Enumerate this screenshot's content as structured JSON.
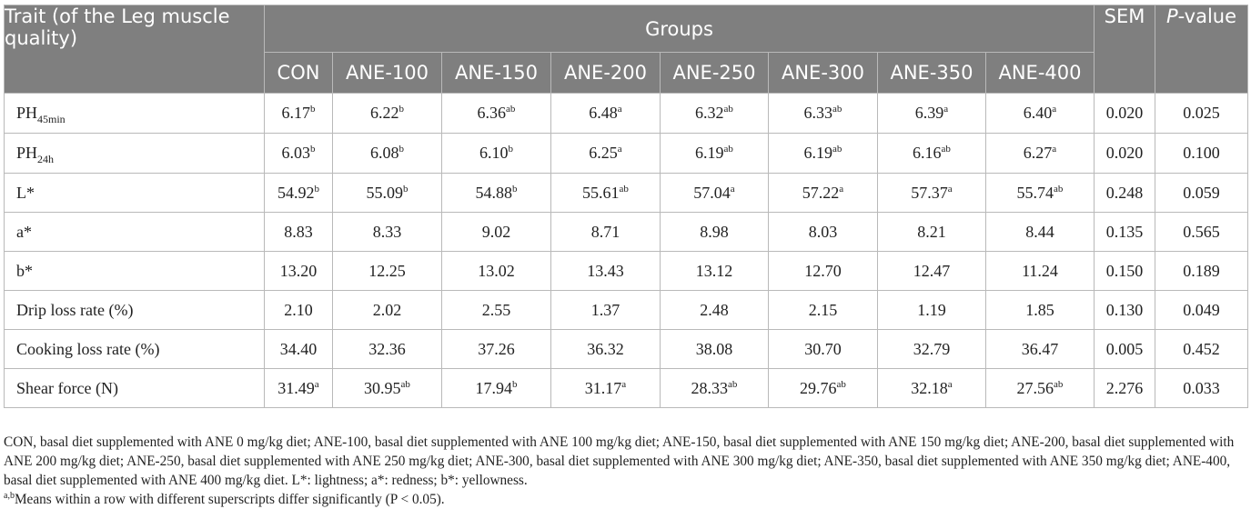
{
  "table": {
    "header": {
      "trait": "Trait (of the Leg muscle quality)",
      "groups": "Groups",
      "sem": "SEM",
      "p_value_italic": "P",
      "p_value_rest": "-value",
      "group_columns": [
        "CON",
        "ANE-100",
        "ANE-150",
        "ANE-200",
        "ANE-250",
        "ANE-300",
        "ANE-350",
        "ANE-400"
      ]
    },
    "rows": [
      {
        "trait": "PH",
        "trait_sub": "45min",
        "values": [
          {
            "v": "6.17",
            "sup": "b"
          },
          {
            "v": "6.22",
            "sup": "b"
          },
          {
            "v": "6.36",
            "sup": "ab"
          },
          {
            "v": "6.48",
            "sup": "a"
          },
          {
            "v": "6.32",
            "sup": "ab"
          },
          {
            "v": "6.33",
            "sup": "ab"
          },
          {
            "v": "6.39",
            "sup": "a"
          },
          {
            "v": "6.40",
            "sup": "a"
          }
        ],
        "sem": "0.020",
        "p": "0.025"
      },
      {
        "trait": "PH",
        "trait_sub": "24h",
        "values": [
          {
            "v": "6.03",
            "sup": "b"
          },
          {
            "v": "6.08",
            "sup": "b"
          },
          {
            "v": "6.10",
            "sup": "b"
          },
          {
            "v": "6.25",
            "sup": "a"
          },
          {
            "v": "6.19",
            "sup": "ab"
          },
          {
            "v": "6.19",
            "sup": "ab"
          },
          {
            "v": "6.16",
            "sup": "ab"
          },
          {
            "v": "6.27",
            "sup": "a"
          }
        ],
        "sem": "0.020",
        "p": "0.100"
      },
      {
        "trait": "L*",
        "trait_sub": "",
        "values": [
          {
            "v": "54.92",
            "sup": "b"
          },
          {
            "v": "55.09",
            "sup": "b"
          },
          {
            "v": "54.88",
            "sup": "b"
          },
          {
            "v": "55.61",
            "sup": "ab"
          },
          {
            "v": "57.04",
            "sup": "a"
          },
          {
            "v": "57.22",
            "sup": "a"
          },
          {
            "v": "57.37",
            "sup": "a"
          },
          {
            "v": "55.74",
            "sup": "ab"
          }
        ],
        "sem": "0.248",
        "p": "0.059"
      },
      {
        "trait": "a*",
        "trait_sub": "",
        "values": [
          {
            "v": "8.83",
            "sup": ""
          },
          {
            "v": "8.33",
            "sup": ""
          },
          {
            "v": "9.02",
            "sup": ""
          },
          {
            "v": "8.71",
            "sup": ""
          },
          {
            "v": "8.98",
            "sup": ""
          },
          {
            "v": "8.03",
            "sup": ""
          },
          {
            "v": "8.21",
            "sup": ""
          },
          {
            "v": "8.44",
            "sup": ""
          }
        ],
        "sem": "0.135",
        "p": "0.565"
      },
      {
        "trait": "b*",
        "trait_sub": "",
        "values": [
          {
            "v": "13.20",
            "sup": ""
          },
          {
            "v": "12.25",
            "sup": ""
          },
          {
            "v": "13.02",
            "sup": ""
          },
          {
            "v": "13.43",
            "sup": ""
          },
          {
            "v": "13.12",
            "sup": ""
          },
          {
            "v": "12.70",
            "sup": ""
          },
          {
            "v": "12.47",
            "sup": ""
          },
          {
            "v": "11.24",
            "sup": ""
          }
        ],
        "sem": "0.150",
        "p": "0.189"
      },
      {
        "trait": "Drip loss rate (%)",
        "trait_sub": "",
        "values": [
          {
            "v": "2.10",
            "sup": ""
          },
          {
            "v": "2.02",
            "sup": ""
          },
          {
            "v": "2.55",
            "sup": ""
          },
          {
            "v": "1.37",
            "sup": ""
          },
          {
            "v": "2.48",
            "sup": ""
          },
          {
            "v": "2.15",
            "sup": ""
          },
          {
            "v": "1.19",
            "sup": ""
          },
          {
            "v": "1.85",
            "sup": ""
          }
        ],
        "sem": "0.130",
        "p": "0.049"
      },
      {
        "trait": "Cooking loss rate (%)",
        "trait_sub": "",
        "values": [
          {
            "v": "34.40",
            "sup": ""
          },
          {
            "v": "32.36",
            "sup": ""
          },
          {
            "v": "37.26",
            "sup": ""
          },
          {
            "v": "36.32",
            "sup": ""
          },
          {
            "v": "38.08",
            "sup": ""
          },
          {
            "v": "30.70",
            "sup": ""
          },
          {
            "v": "32.79",
            "sup": ""
          },
          {
            "v": "36.47",
            "sup": ""
          }
        ],
        "sem": "0.005",
        "p": "0.452"
      },
      {
        "trait": "Shear force (N)",
        "trait_sub": "",
        "values": [
          {
            "v": "31.49",
            "sup": "a"
          },
          {
            "v": "30.95",
            "sup": "ab"
          },
          {
            "v": "17.94",
            "sup": "b"
          },
          {
            "v": "31.17",
            "sup": "a"
          },
          {
            "v": "28.33",
            "sup": "ab"
          },
          {
            "v": "29.76",
            "sup": "ab"
          },
          {
            "v": "32.18",
            "sup": "a"
          },
          {
            "v": "27.56",
            "sup": "ab"
          }
        ],
        "sem": "2.276",
        "p": "0.033"
      }
    ]
  },
  "footnotes": {
    "abbreviations": "CON, basal diet supplemented with ANE 0 mg/kg diet; ANE-100, basal diet supplemented with ANE 100 mg/kg diet; ANE-150, basal diet supplemented with ANE 150 mg/kg diet; ANE-200, basal diet supplemented with ANE 200 mg/kg diet; ANE-250, basal diet supplemented with ANE 250 mg/kg diet; ANE-300, basal diet supplemented with ANE 300 mg/kg diet; ANE-350, basal diet supplemented with ANE 350 mg/kg diet; ANE-400, basal diet supplemented with ANE 400 mg/kg diet. L*: lightness; a*: redness; b*: yellowness.",
    "superscript_marker": "a,b",
    "significance": "Means within a row with different superscripts differ significantly (P < 0.05)."
  },
  "colors": {
    "header_bg": "#7f7f7f",
    "header_text": "#ffffff",
    "border": "#b9b9b9"
  }
}
